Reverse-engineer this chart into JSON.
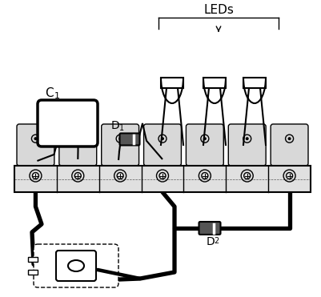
{
  "bg_color": "#ffffff",
  "line_color": "#000000",
  "figsize": [
    4.02,
    3.71
  ],
  "dpi": 100,
  "leds_label": "LEDs",
  "c1_label": "C",
  "c1_sub": "1",
  "d1_label": "D",
  "d1_sub": "1",
  "d2_label": "D",
  "d2_sub": "2"
}
